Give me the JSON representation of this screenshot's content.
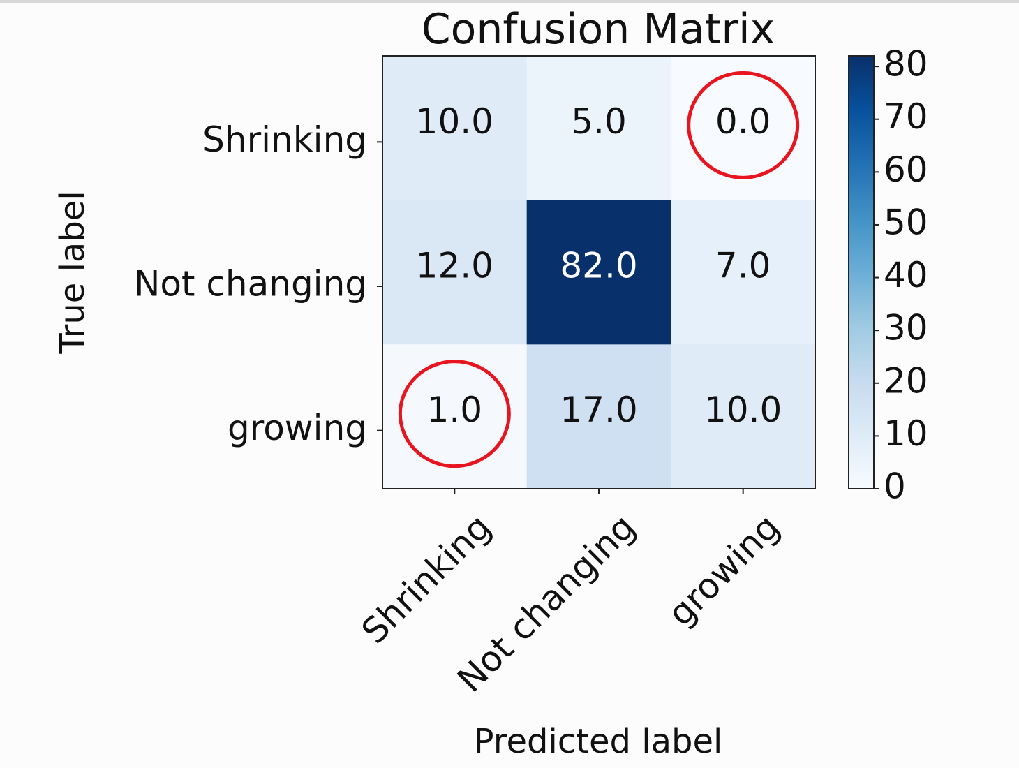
{
  "chart_data": {
    "type": "heatmap",
    "title": "Confusion Matrix",
    "xlabel": "Predicted label",
    "ylabel": "True label",
    "x_categories": [
      "Shrinking",
      "Not changing",
      "growing"
    ],
    "y_categories": [
      "Shrinking",
      "Not changing",
      "growing"
    ],
    "values": [
      [
        10.0,
        5.0,
        0.0
      ],
      [
        12.0,
        82.0,
        7.0
      ],
      [
        1.0,
        17.0,
        10.0
      ]
    ],
    "value_labels": [
      [
        "10.0",
        "5.0",
        "0.0"
      ],
      [
        "12.0",
        "82.0",
        "7.0"
      ],
      [
        "1.0",
        "17.0",
        "10.0"
      ]
    ],
    "colormap": "Blues",
    "colorbar": {
      "range": [
        0,
        82
      ],
      "ticks": [
        0,
        10,
        20,
        30,
        40,
        50,
        60,
        70,
        80
      ],
      "tick_labels": [
        "0",
        "10",
        "20",
        "30",
        "40",
        "50",
        "60",
        "70",
        "80"
      ]
    },
    "annotations": [
      {
        "type": "circle",
        "row": 0,
        "col": 2,
        "color": "#e8141e"
      },
      {
        "type": "circle",
        "row": 2,
        "col": 0,
        "color": "#e8141e"
      }
    ]
  }
}
